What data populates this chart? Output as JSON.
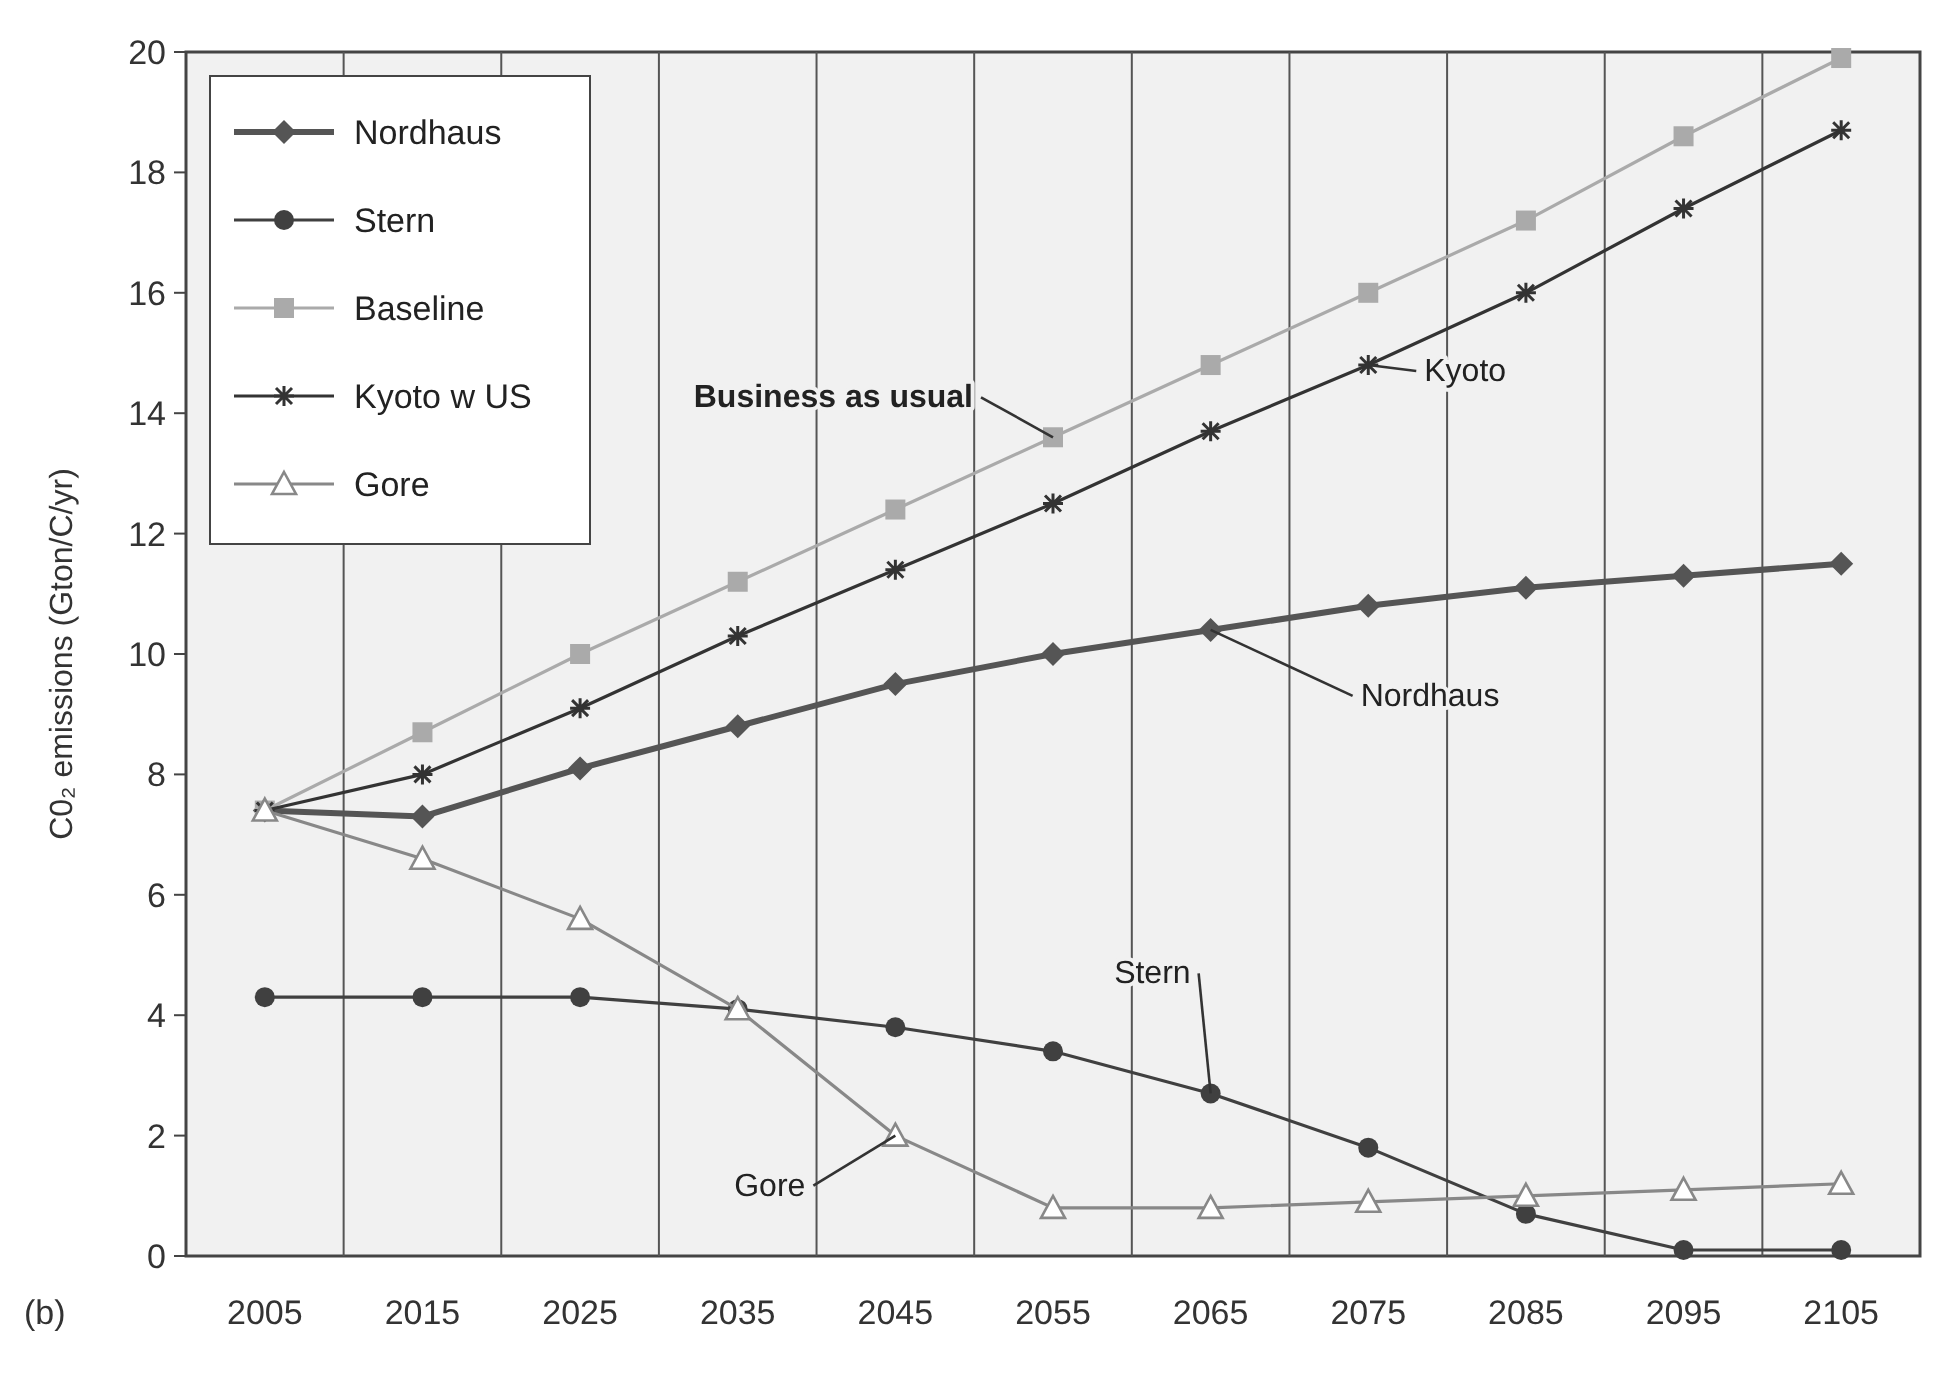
{
  "chart_data": {
    "type": "line",
    "ylabel": "C0₂ emissions (Gton/C/yr)",
    "categories": [
      "2005",
      "2015",
      "2025",
      "2035",
      "2045",
      "2055",
      "2065",
      "2075",
      "2085",
      "2095",
      "2105"
    ],
    "series": [
      {
        "name": "Nordhaus",
        "color": "#555555",
        "marker": "diamond",
        "values": [
          7.4,
          7.3,
          8.1,
          8.8,
          9.5,
          10.0,
          10.4,
          10.8,
          11.1,
          11.3,
          11.5
        ]
      },
      {
        "name": "Stern",
        "color": "#404040",
        "marker": "circle",
        "values": [
          4.3,
          4.3,
          4.3,
          4.1,
          3.8,
          3.4,
          2.7,
          1.8,
          0.7,
          0.1,
          0.1
        ]
      },
      {
        "name": "Baseline",
        "color": "#aaaaaa",
        "marker": "square",
        "values": [
          7.4,
          8.7,
          10.0,
          11.2,
          12.4,
          13.6,
          14.8,
          16.0,
          17.2,
          18.6,
          19.9
        ]
      },
      {
        "name": "Kyoto w US",
        "color": "#333333",
        "marker": "cross",
        "values": [
          7.4,
          8.0,
          9.1,
          10.3,
          11.4,
          12.5,
          13.7,
          14.8,
          16.0,
          17.4,
          18.7
        ]
      },
      {
        "name": "Gore",
        "color": "#888888",
        "marker": "triangle",
        "values": [
          7.4,
          6.6,
          5.6,
          4.1,
          2.0,
          0.8,
          0.8,
          0.9,
          1.0,
          1.1,
          1.2
        ]
      }
    ],
    "ylim": [
      0,
      20
    ],
    "yticks": [
      0,
      2,
      4,
      6,
      8,
      10,
      12,
      14,
      16,
      18,
      20
    ],
    "grid": "x",
    "legend": "top left",
    "line_style": "solid",
    "annotations": [
      {
        "text": "Business as usual",
        "x": "2055",
        "y": 13.6
      },
      {
        "text": "Kyoto",
        "x": "2075",
        "y": 14.8
      },
      {
        "text": "Nordhaus",
        "x": "2065",
        "y": 10.4
      },
      {
        "text": "Stern",
        "x": "2065",
        "y": 2.7
      },
      {
        "text": "Gore",
        "x": "2045",
        "y": 2.0
      },
      "(b)"
    ]
  }
}
